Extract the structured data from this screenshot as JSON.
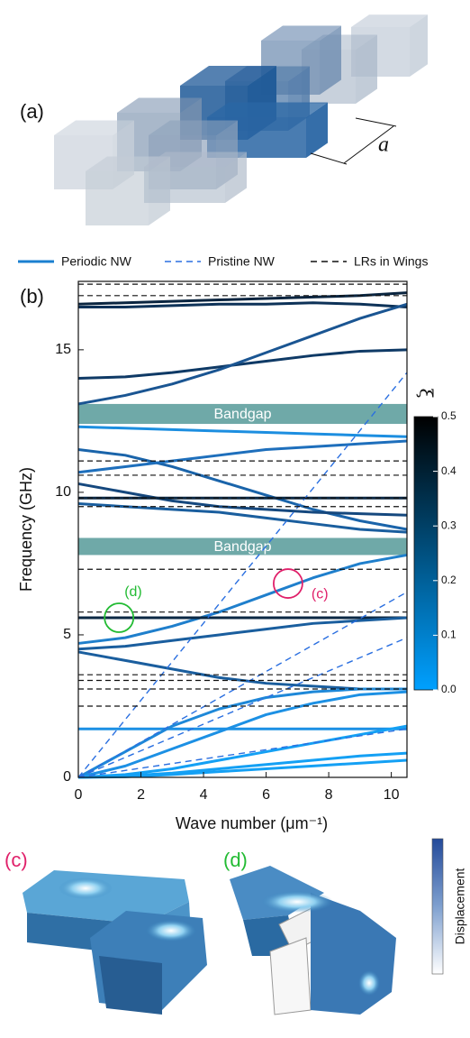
{
  "figure": {
    "panel_a": "(a)",
    "dimension": "a",
    "panel_c": "(c)",
    "panel_d": "(d)",
    "displacement": "Displacement"
  },
  "chart_data": {
    "type": "line",
    "panel": "(b)",
    "x_label": "Wave number (μm⁻¹)",
    "y_label": "Frequency (GHz)",
    "xlim": [
      0,
      10.5
    ],
    "ylim": [
      0,
      17.4
    ],
    "xticks": [
      0,
      2,
      4,
      6,
      8,
      10
    ],
    "yticks": [
      0,
      5,
      10,
      15
    ],
    "x": [
      0,
      1.5,
      3,
      4.5,
      6,
      7.5,
      9,
      10.5
    ],
    "series": [
      {
        "name": "Periodic NW",
        "color": "#1a7fd0",
        "style": "solid",
        "lines": [
          {
            "color": "#0a2540",
            "values": [
              16.6,
              16.65,
              16.7,
              16.75,
              16.8,
              16.85,
              16.9,
              17.0
            ]
          },
          {
            "color": "#0d3258",
            "values": [
              16.5,
              16.5,
              16.55,
              16.6,
              16.6,
              16.65,
              16.6,
              16.5
            ]
          },
          {
            "color": "#0f3a66",
            "values": [
              14.0,
              14.05,
              14.2,
              14.4,
              14.6,
              14.8,
              14.95,
              15.0
            ]
          },
          {
            "color": "#1a5592",
            "values": [
              13.1,
              13.4,
              13.8,
              14.3,
              14.9,
              15.5,
              16.1,
              16.6
            ]
          },
          {
            "color": "#1c8ee0",
            "values": [
              12.3,
              12.25,
              12.2,
              12.15,
              12.1,
              12.05,
              12.0,
              11.95
            ]
          },
          {
            "color": "#1a64aa",
            "values": [
              11.5,
              11.3,
              10.9,
              10.4,
              9.9,
              9.4,
              9.0,
              8.7
            ]
          },
          {
            "color": "#1e6fbc",
            "values": [
              10.7,
              10.9,
              11.1,
              11.3,
              11.5,
              11.6,
              11.7,
              11.8
            ]
          },
          {
            "color": "#15487e",
            "values": [
              10.3,
              10.0,
              9.7,
              9.5,
              9.4,
              9.3,
              9.25,
              9.2
            ]
          },
          {
            "color": "#0b2844",
            "values": [
              9.8,
              9.8,
              9.8,
              9.8,
              9.8,
              9.8,
              9.8,
              9.8
            ]
          },
          {
            "color": "#1a5e9e",
            "values": [
              9.6,
              9.5,
              9.4,
              9.3,
              9.1,
              8.9,
              8.7,
              8.6
            ]
          },
          {
            "color": "#1f7fcc",
            "values": [
              4.7,
              4.9,
              5.3,
              5.8,
              6.4,
              7.0,
              7.5,
              7.8
            ]
          },
          {
            "color": "#0b2844",
            "values": [
              5.6,
              5.6,
              5.6,
              5.6,
              5.6,
              5.6,
              5.6,
              5.6
            ]
          },
          {
            "color": "#1a5e9e",
            "values": [
              4.5,
              4.6,
              4.8,
              5.0,
              5.2,
              5.4,
              5.5,
              5.6
            ]
          },
          {
            "color": "#1a5e9e",
            "values": [
              4.4,
              4.1,
              3.8,
              3.5,
              3.3,
              3.2,
              3.1,
              3.1
            ]
          },
          {
            "color": "#1c90e4",
            "values": [
              1.7,
              1.7,
              1.7,
              1.7,
              1.7,
              1.7,
              1.7,
              1.7
            ]
          },
          {
            "color": "#1e88d8",
            "values": [
              0,
              0.9,
              1.8,
              2.4,
              2.8,
              3.0,
              3.1,
              3.1
            ]
          },
          {
            "color": "#1c90e4",
            "values": [
              0,
              0.4,
              1.0,
              1.6,
              2.2,
              2.6,
              2.9,
              3.0
            ]
          },
          {
            "color": "#14a0f4",
            "values": [
              0,
              0.1,
              0.3,
              0.6,
              0.9,
              1.2,
              1.5,
              1.8
            ]
          },
          {
            "color": "#14a0f4",
            "values": [
              0,
              0.05,
              0.15,
              0.3,
              0.45,
              0.6,
              0.75,
              0.85
            ]
          },
          {
            "color": "#14a0f4",
            "values": [
              0,
              0.02,
              0.1,
              0.2,
              0.3,
              0.4,
              0.5,
              0.6
            ]
          }
        ]
      },
      {
        "name": "Pristine NW",
        "color": "#2a6fe0",
        "style": "dashed",
        "lines": [
          {
            "x": [
              0,
              10.5
            ],
            "values": [
              0,
              14.2
            ]
          },
          {
            "x": [
              0,
              10.5
            ],
            "values": [
              0,
              6.5
            ]
          },
          {
            "x": [
              0,
              10.5
            ],
            "values": [
              0,
              4.9
            ]
          },
          {
            "x": [
              0,
              10.5
            ],
            "values": [
              0,
              1.7
            ]
          }
        ]
      },
      {
        "name": "LRs in Wings",
        "color": "#111111",
        "style": "dashed",
        "levels": [
          17.3,
          16.9,
          11.1,
          10.6,
          9.8,
          9.5,
          7.3,
          5.8,
          3.6,
          3.4,
          3.1,
          2.5
        ]
      }
    ],
    "bands": [
      {
        "label": "Bandgap",
        "range": [
          12.4,
          13.1
        ]
      },
      {
        "label": "Bandgap",
        "range": [
          7.8,
          8.4
        ]
      }
    ],
    "band_color": "#6fa9a8",
    "annotations": [
      {
        "label": "(c)",
        "x": 6.7,
        "y": 6.8,
        "color": "#e0206a"
      },
      {
        "label": "(d)",
        "x": 1.3,
        "y": 5.6,
        "color": "#22bb33"
      }
    ],
    "colorbar": {
      "label": "ξ",
      "lim": [
        0,
        0.5
      ],
      "colors": [
        "#00a0ff",
        "#000000"
      ],
      "ticks": [
        {
          "value": 0,
          "label": "0.0"
        },
        0.1,
        0.2,
        0.3,
        0.4,
        0.5
      ]
    }
  }
}
